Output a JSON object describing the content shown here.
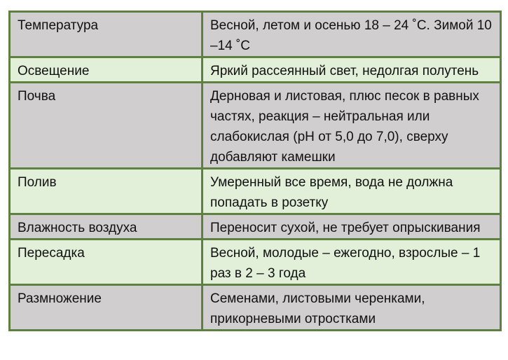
{
  "colors": {
    "border": "#5e8040",
    "row_gray": "#d0cece",
    "row_green": "#e2efd9"
  },
  "rows": [
    {
      "label": "Температура",
      "value": "Весной, летом и осенью 18 – 24 ˚С. Зимой 10 –14 ˚С"
    },
    {
      "label": "Освещение",
      "value": "Яркий рассеянный свет, недолгая полутень"
    },
    {
      "label": "Почва",
      "value": "Дерновая и листовая, плюс песок в равных частях, реакция – нейтральная или слабокислая (рН от 5,0 до 7,0), сверху добавляют камешки"
    },
    {
      "label": "Полив",
      "value": "Умеренный все время, вода не должна попадать в розетку"
    },
    {
      "label": "Влажность воздуха",
      "value": "Переносит сухой, не требует опрыскивания"
    },
    {
      "label": "Пересадка",
      "value": "Весной, молодые – ежегодно, взрослые – 1 раз в 2 – 3 года"
    },
    {
      "label": "Размножение",
      "value": "Семенами, листовыми черенками, прикорневыми отростками"
    }
  ]
}
